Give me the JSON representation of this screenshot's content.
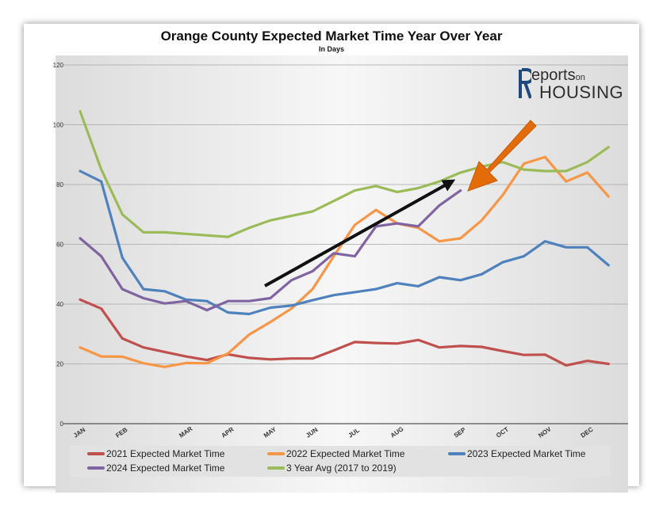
{
  "chart_data": {
    "type": "line",
    "title": "Orange County Expected Market Time Year Over Year",
    "subtitle": "In Days",
    "ylim": [
      0,
      120
    ],
    "yticks": [
      0,
      20,
      40,
      60,
      80,
      100,
      120
    ],
    "month_labels": [
      "JAN",
      "FEB",
      "MAR",
      "APR",
      "MAY",
      "JUN",
      "JUL",
      "AUG",
      "SEP",
      "OCT",
      "NOV",
      "DEC"
    ],
    "grid": true,
    "legend_position": "bottom",
    "series": [
      {
        "name": "2021 Expected Market Time",
        "color": "#c0504d",
        "values": [
          41.5,
          38.5,
          28.5,
          25.5,
          24,
          22.5,
          21.3,
          23.2,
          22,
          21.5,
          21.8,
          21.8,
          24.5,
          27.3,
          27,
          26.8,
          28,
          25.5,
          26,
          25.7,
          24.3,
          23,
          23.1,
          19.5,
          21,
          20
        ]
      },
      {
        "name": "2022 Expected Market Time",
        "color": "#f79646",
        "values": [
          25.5,
          22.5,
          22.4,
          20.2,
          19,
          20.3,
          20.2,
          23.5,
          29.8,
          34,
          38.5,
          45,
          56,
          66.5,
          71.5,
          67,
          65.5,
          61,
          62,
          68,
          76.5,
          87,
          89.2,
          81,
          84,
          76
        ]
      },
      {
        "name": "2023 Expected Market Time",
        "color": "#4f81bd",
        "values": [
          84.5,
          81,
          55.5,
          45,
          44.3,
          41.5,
          41,
          37.2,
          36.7,
          38.8,
          39.5,
          41.3,
          43,
          44,
          45,
          47,
          46,
          49,
          48,
          50,
          54,
          56,
          61,
          59,
          59,
          53
        ]
      },
      {
        "name": "2024 Expected Market Time",
        "color": "#8064a2",
        "values": [
          62,
          56,
          45,
          42,
          40.2,
          41,
          38,
          41,
          41,
          42,
          48,
          51,
          57,
          56,
          66,
          67,
          66,
          73,
          78
        ]
      },
      {
        "name": "3 Year Avg (2017 to 2019)",
        "color": "#9bbb59",
        "values": [
          104.5,
          85,
          70,
          64,
          64,
          63.5,
          63,
          62.5,
          65.5,
          68,
          69.5,
          71,
          74.5,
          78,
          79.5,
          77.5,
          78.8,
          81,
          84,
          86,
          87.5,
          85,
          84.5,
          84.5,
          87.5,
          92.5
        ]
      }
    ]
  },
  "logo": {
    "top_text": "eports",
    "top_small": "on",
    "bottom_text": "HOUSING"
  }
}
